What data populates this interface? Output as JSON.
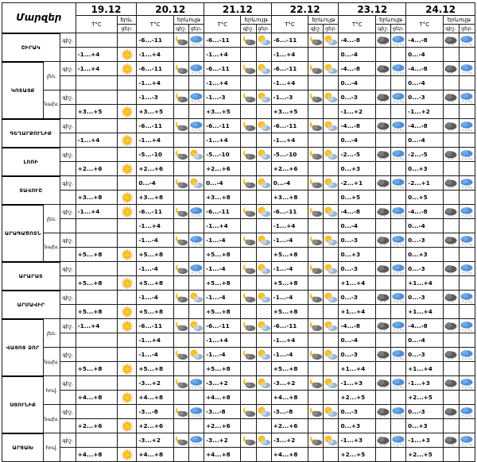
{
  "header": {
    "title": "Մարզեր",
    "temp_label": "T°C",
    "weather_label": "երևույթ",
    "weather_short": "երև.",
    "day_label": "ցեր.",
    "night_label": "գիշ."
  },
  "days": [
    "19.12",
    "20.12",
    "21.12",
    "22.12",
    "23.12",
    "24.12"
  ],
  "regions": [
    {
      "name": "ՇԻՐԱԿ",
      "rows": [
        {
          "tod": "գիշ.",
          "temps": [
            "",
            "-6...-11",
            "-6...-11",
            "-6...-11",
            "-4...-8",
            "-4...-8"
          ],
          "icons": [
            [],
            [
              "moon-cloud",
              "cloud-snow"
            ],
            [
              "moon-cloud",
              "sun-cloud"
            ],
            [
              "moon-cloud",
              "sun-cloud"
            ],
            [
              "cloud-dark",
              "cloud-snow"
            ],
            [
              "cloud-dark",
              "cloud-snow"
            ]
          ]
        },
        {
          "tod": "",
          "temps": [
            "-1...+4",
            "-1...+4",
            "-1...+4",
            "-1...+4",
            "0...-4",
            "0...-4"
          ],
          "icons": [
            [
              "sun"
            ],
            [],
            [],
            [],
            [],
            []
          ]
        }
      ]
    },
    {
      "name": "ԿՈՏԱՅՔ",
      "sub": "լեռ.",
      "rows": [
        {
          "tod": "գիշ.",
          "temps": [
            "-1...+4",
            "-6...-11",
            "-6...-11",
            "-6...-11",
            "-4...-8",
            "-4...-8"
          ],
          "icons": [
            [
              "sun"
            ],
            [
              "moon-cloud",
              "cloud-snow"
            ],
            [
              "moon-cloud",
              "sun-cloud"
            ],
            [
              "moon-cloud",
              "sun-cloud"
            ],
            [
              "cloud-dark",
              "cloud-snow"
            ],
            [
              "cloud-dark",
              "cloud-snow"
            ]
          ]
        },
        {
          "tod": "",
          "temps": [
            "",
            "-1...+4",
            "-1...+4",
            "-1...+4",
            "0...-4",
            "0...-4"
          ],
          "icons": [
            [],
            [],
            [],
            [],
            [],
            []
          ]
        }
      ]
    },
    {
      "name": "",
      "sub": "նախ.",
      "rows": [
        {
          "tod": "գիշ.",
          "temps": [
            "",
            "-1...-3",
            "-1...-3",
            "-1...-3",
            "0...-3",
            "0...-3"
          ],
          "icons": [
            [],
            [
              "moon-cloud",
              "cloud-snow"
            ],
            [
              "moon-cloud",
              "sun-cloud"
            ],
            [
              "moon-cloud",
              "sun-cloud"
            ],
            [
              "cloud-dark",
              "cloud-snow"
            ],
            [
              "cloud-dark",
              "cloud-snow"
            ]
          ]
        },
        {
          "tod": "",
          "temps": [
            "+3...+5",
            "+3...+5",
            "+3...+5",
            "+3...+5",
            "-1...+2",
            "-1...+2"
          ],
          "icons": [
            [
              "sun"
            ],
            [],
            [],
            [],
            [],
            []
          ]
        }
      ]
    },
    {
      "name": "ԳԵՂԱՐՔՈՒՆԻՔ",
      "rows": [
        {
          "tod": "գիշ.",
          "temps": [
            "",
            "-6...-11",
            "-6...-11",
            "-6...-11",
            "-4...-8",
            "-4...-8"
          ],
          "icons": [
            [],
            [
              "moon-cloud",
              "cloud-snow"
            ],
            [
              "moon-cloud",
              "sun-cloud"
            ],
            [
              "moon-cloud",
              "sun-cloud"
            ],
            [
              "cloud-dark",
              "cloud-snow"
            ],
            [
              "cloud-dark",
              "cloud-snow"
            ]
          ]
        },
        {
          "tod": "",
          "temps": [
            "-1...+4",
            "-1...+4",
            "-1...+4",
            "-1...+4",
            "0...-4",
            "0...-4"
          ],
          "icons": [
            [
              "sun"
            ],
            [],
            [],
            [],
            [],
            []
          ]
        }
      ]
    },
    {
      "name": "ԼՈՌԻ",
      "rows": [
        {
          "tod": "գիշ.",
          "temps": [
            "",
            "-5...-10",
            "-5...-10",
            "-5...-10",
            "-2...-5",
            "-2...-5"
          ],
          "icons": [
            [],
            [
              "moon-cloud",
              "sun-cloud"
            ],
            [
              "moon-cloud",
              "sun-cloud"
            ],
            [
              "moon-cloud",
              "sun-cloud"
            ],
            [
              "cloud-dark",
              "cloud-snow"
            ],
            [
              "cloud-dark",
              "cloud-snow"
            ]
          ]
        },
        {
          "tod": "",
          "temps": [
            "+2...+6",
            "+2...+6",
            "+2...+6",
            "+2...+6",
            "0...+3",
            "0...+3"
          ],
          "icons": [
            [
              "sun"
            ],
            [],
            [],
            [],
            [],
            []
          ]
        }
      ]
    },
    {
      "name": "ՏԱՎՈՒՇ",
      "rows": [
        {
          "tod": "գիշ.",
          "temps": [
            "",
            "0...-4",
            "0...-4",
            "0...-4",
            "-2...+1",
            "-2...+1"
          ],
          "icons": [
            [],
            [
              "moon-cloud",
              "sun-cloud"
            ],
            [
              "moon-cloud",
              "sun-cloud"
            ],
            [
              "moon-cloud",
              "sun-cloud"
            ],
            [
              "cloud-dark",
              "cloud-snow"
            ],
            [
              "cloud-dark",
              "cloud-snow"
            ]
          ]
        },
        {
          "tod": "",
          "temps": [
            "+3...+8",
            "+3...+8",
            "+3...+8",
            "+3...+8",
            "0...+5",
            "0...+5"
          ],
          "icons": [
            [
              "sun"
            ],
            [],
            [],
            [],
            [],
            []
          ]
        }
      ]
    },
    {
      "name": "ԱՐԱԳԱԾՈՏՆ",
      "sub": "լեռ.",
      "rows": [
        {
          "tod": "գիշ.",
          "temps": [
            "-1...+4",
            "-6...-11",
            "-6...-11",
            "-6...-11",
            "-4...-8",
            "-4...-8"
          ],
          "icons": [
            [
              "sun"
            ],
            [
              "moon-cloud",
              "cloud-snow"
            ],
            [
              "moon-cloud",
              "sun-cloud"
            ],
            [
              "moon-cloud",
              "sun-cloud"
            ],
            [
              "cloud-dark",
              "cloud-snow"
            ],
            [
              "cloud-dark",
              "cloud-snow"
            ]
          ]
        },
        {
          "tod": "",
          "temps": [
            "",
            "-1...+4",
            "-1...+4",
            "-1...+4",
            "0...-4",
            "0...-4"
          ],
          "icons": [
            [],
            [],
            [],
            [],
            [],
            []
          ]
        }
      ]
    },
    {
      "name": "",
      "sub": "նախ.",
      "rows": [
        {
          "tod": "գիշ.",
          "temps": [
            "",
            "-1...-4",
            "-1...-4",
            "-1...-4",
            "0...-3",
            "0...-3"
          ],
          "icons": [
            [],
            [
              "moon-cloud",
              "cloud-snow"
            ],
            [
              "moon-cloud",
              "sun-cloud"
            ],
            [
              "moon-cloud",
              "sun-cloud"
            ],
            [
              "cloud-dark",
              "cloud-snow"
            ],
            [
              "cloud-dark",
              "cloud-snow"
            ]
          ]
        },
        {
          "tod": "",
          "temps": [
            "+5...+8",
            "+5...+8",
            "+5...+8",
            "+5...+8",
            "0...+3",
            "0...+3"
          ],
          "icons": [
            [
              "sun"
            ],
            [],
            [],
            [],
            [],
            []
          ]
        }
      ]
    },
    {
      "name": "ԱՐԱՐԱՏ",
      "rows": [
        {
          "tod": "գիշ.",
          "temps": [
            "",
            "-1...-4",
            "-1...-4",
            "-1...-4",
            "0...-3",
            "0...-3"
          ],
          "icons": [
            [],
            [
              "moon-cloud",
              "cloud-snow"
            ],
            [
              "moon-cloud",
              "sun-cloud"
            ],
            [
              "moon-cloud",
              "sun-cloud"
            ],
            [
              "cloud-dark",
              "cloud-snow"
            ],
            [
              "cloud-dark",
              "cloud-snow"
            ]
          ]
        },
        {
          "tod": "",
          "temps": [
            "+5...+8",
            "+5...+8",
            "+5...+8",
            "+5...+8",
            "+1...+4",
            "+1...+4"
          ],
          "icons": [
            [
              "sun"
            ],
            [],
            [],
            [],
            [],
            []
          ]
        }
      ]
    },
    {
      "name": "ԱՐՄԱՎԻՐ",
      "rows": [
        {
          "tod": "գիշ.",
          "temps": [
            "",
            "-1...-4",
            "-1...-4",
            "-1...-4",
            "0...-3",
            "0...-3"
          ],
          "icons": [
            [],
            [
              "moon-cloud",
              "sun-cloud"
            ],
            [
              "moon-cloud",
              "sun-cloud"
            ],
            [
              "moon-cloud",
              "sun-cloud"
            ],
            [
              "cloud-dark",
              "cloud-snow"
            ],
            [
              "cloud-dark",
              "cloud-snow"
            ]
          ]
        },
        {
          "tod": "",
          "temps": [
            "+5...+8",
            "+5...+8",
            "+5...+8",
            "+5...+8",
            "+1...+4",
            "+1...+4"
          ],
          "icons": [
            [
              "sun"
            ],
            [],
            [],
            [],
            [],
            []
          ]
        }
      ]
    },
    {
      "name": "ՎԱՅՈՑ ՁՈՐ",
      "sub": "լեռ.",
      "rows": [
        {
          "tod": "գիշ.",
          "temps": [
            "-1...+4",
            "-6...-11",
            "-6...-11",
            "-6...-11",
            "-4...-8",
            "-4...-8"
          ],
          "icons": [
            [
              "sun"
            ],
            [
              "moon-cloud",
              "sun-cloud"
            ],
            [
              "moon-cloud",
              "sun-cloud"
            ],
            [
              "moon-cloud",
              "sun-cloud"
            ],
            [
              "cloud-dark",
              "cloud-snow"
            ],
            [
              "cloud-dark",
              "cloud-snow"
            ]
          ]
        },
        {
          "tod": "",
          "temps": [
            "",
            "-1...+4",
            "-1...+4",
            "-1...+4",
            "0...-4",
            "0...-4"
          ],
          "icons": [
            [],
            [],
            [],
            [],
            [],
            []
          ]
        }
      ]
    },
    {
      "name": "",
      "sub": "նախ.",
      "rows": [
        {
          "tod": "գիշ.",
          "temps": [
            "",
            "-1...-4",
            "-1...-4",
            "-1...-4",
            "0...-3",
            "0...-3"
          ],
          "icons": [
            [],
            [
              "moon-cloud",
              "sun-cloud"
            ],
            [
              "moon-cloud",
              "sun-cloud"
            ],
            [
              "moon-cloud",
              "sun-cloud"
            ],
            [
              "cloud-dark",
              "cloud-snow"
            ],
            [
              "cloud-dark",
              "cloud-snow"
            ]
          ]
        },
        {
          "tod": "",
          "temps": [
            "+5...+8",
            "+5...+8",
            "+5...+8",
            "+5...+8",
            "+1...+4",
            "+1...+4"
          ],
          "icons": [
            [
              "sun"
            ],
            [],
            [],
            [],
            [],
            []
          ]
        }
      ]
    },
    {
      "name": "ՍՅՈՒՆԻՔ",
      "sub": "հով.",
      "rows": [
        {
          "tod": "գիշ.",
          "temps": [
            "",
            "-3...+2",
            "-3...+2",
            "-3...+2",
            "-1...+3",
            "-1...+3"
          ],
          "icons": [
            [],
            [
              "moon-cloud",
              "cloud-snow"
            ],
            [
              "moon-cloud",
              "sun-cloud"
            ],
            [
              "moon-cloud",
              "sun-cloud"
            ],
            [
              "cloud-dark",
              "cloud-snow"
            ],
            [
              "cloud-dark",
              "cloud-snow"
            ]
          ]
        },
        {
          "tod": "",
          "temps": [
            "+4...+8",
            "+4...+8",
            "+4...+8",
            "+4...+8",
            "+2...+5",
            "+2...+5"
          ],
          "icons": [
            [
              "sun"
            ],
            [],
            [],
            [],
            [],
            []
          ]
        }
      ]
    },
    {
      "name": "",
      "sub": "նախ.",
      "rows": [
        {
          "tod": "գիշ.",
          "temps": [
            "",
            "-3...-8",
            "-3...-8",
            "-3...-8",
            "0...-3",
            "0...-3"
          ],
          "icons": [
            [],
            [
              "moon-cloud",
              "cloud-snow"
            ],
            [
              "moon-cloud",
              "sun-cloud"
            ],
            [
              "moon-cloud",
              "sun-cloud"
            ],
            [
              "cloud-dark",
              "cloud-snow"
            ],
            [
              "cloud-dark",
              "cloud-snow"
            ]
          ]
        },
        {
          "tod": "",
          "temps": [
            "+2...+6",
            "+2...+6",
            "+2...+6",
            "+2...+6",
            "0...+3",
            "0...+3"
          ],
          "icons": [
            [
              "sun"
            ],
            [],
            [],
            [],
            [],
            []
          ]
        }
      ]
    },
    {
      "name": "ԱՐՑԱԽ",
      "sub": "հով.",
      "rows": [
        {
          "tod": "գիշ.",
          "temps": [
            "",
            "-3...+2",
            "-3...+2",
            "-3...+2",
            "-1...+3",
            "-1...+3"
          ],
          "icons": [
            [],
            [
              "moon-cloud",
              "cloud-snow"
            ],
            [
              "moon-cloud",
              "sun-cloud"
            ],
            [
              "moon-cloud",
              "sun-cloud"
            ],
            [
              "cloud-dark",
              "cloud-snow"
            ],
            [
              "cloud-dark",
              "cloud-snow"
            ]
          ]
        },
        {
          "tod": "",
          "temps": [
            "+4...+8",
            "+4...+8",
            "+4...+8",
            "+4...+8",
            "+2...+5",
            "+2...+5"
          ],
          "icons": [
            [
              "sun"
            ],
            [],
            [],
            [],
            [],
            []
          ]
        }
      ]
    }
  ]
}
